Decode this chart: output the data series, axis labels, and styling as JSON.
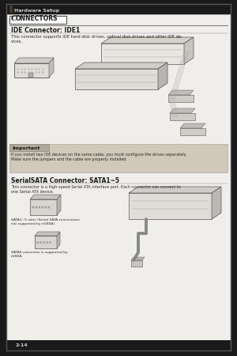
{
  "bg_color": "#1a1a1a",
  "page_bg": "#f0eeeb",
  "header_text": "Hardware Setup",
  "section_title": "CONNECTORS",
  "ide_title": "IDE Connector: IDE1",
  "ide_desc": "This connector supports IDE hard disk drives, optical disk drives and other IDE de-\nvices.",
  "important_title": "Important",
  "important_text": "If you install two IDE devices on the same cable, you must configure the drives separately.\nMake sure the jumpers and the cable are properly installed.",
  "sata_title": "SerialSATA Connector: SATA1~5",
  "sata_desc": "This connector is a high-speed Serial ATA interface port. Each connector can connect to\none Serial ATA device.",
  "sata_label1": "SATA1~5 slots (Serial SATA connections\nnot supported by nVIDIA).",
  "sata_label2": "SATAII connector is supported by\nnVIDIA.",
  "page_num": "2-14",
  "accent_color": "#4a3a2a",
  "line_color": "#888888",
  "text_color": "#2a2a2a",
  "title_color": "#1a1a1a",
  "important_bg": "#d0c8b8",
  "border_color": "#666666"
}
